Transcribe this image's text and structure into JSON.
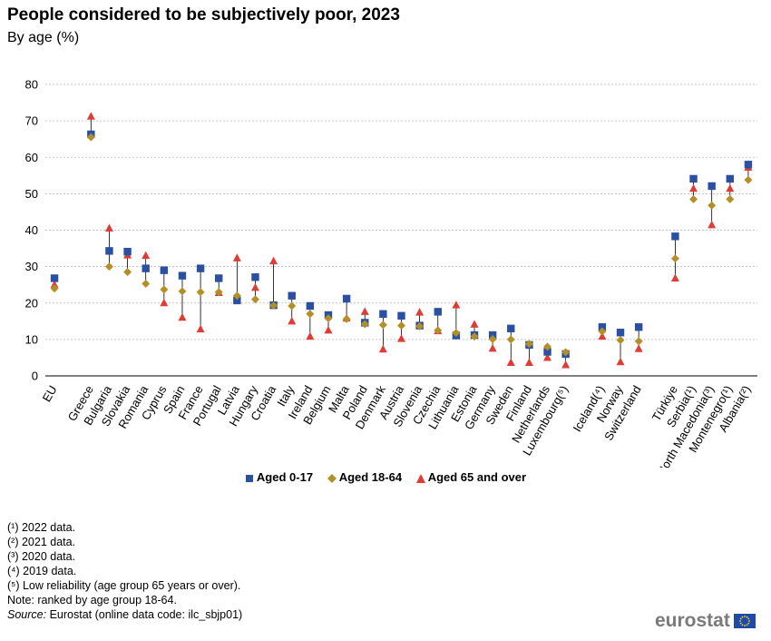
{
  "header": {
    "title": "People considered to be subjectively poor, 2023",
    "subtitle": "By age (%)"
  },
  "chart_data": {
    "type": "scatter",
    "title": "People considered to be subjectively poor, 2023",
    "subtitle": "By age (%)",
    "ylim": [
      0,
      80
    ],
    "yticks": [
      0,
      10,
      20,
      30,
      40,
      50,
      60,
      70,
      80
    ],
    "grid": true,
    "legend_position": "bottom",
    "categories": [
      "EU",
      "",
      "Greece",
      "Bulgaria",
      "Slovakia",
      "Romania",
      "Cyprus",
      "Spain",
      "France",
      "Portugal",
      "Latvia",
      "Hungary",
      "Croatia",
      "Italy",
      "Ireland",
      "Belgium",
      "Malta",
      "Poland",
      "Denmark",
      "Austria",
      "Slovenia",
      "Czechia",
      "Lithuania",
      "Estonia",
      "Germany",
      "Sweden",
      "Finland",
      "Netherlands",
      "Luxembourg(⁵)",
      "",
      "Iceland(⁴)",
      "Norway",
      "Switzerland",
      "",
      "Türkiye",
      "Serbia(¹)",
      "North Macedonia(³)",
      "Montenegro(¹)",
      "Albania(²)"
    ],
    "series": [
      {
        "name": "Aged 0-17",
        "color": "#2a4fa3",
        "marker": "square",
        "values": [
          26.8,
          null,
          66.3,
          34.3,
          34.1,
          29.5,
          29.0,
          27.5,
          29.5,
          26.8,
          20.7,
          27.1,
          19.4,
          22.0,
          19.2,
          16.7,
          21.2,
          14.6,
          17.0,
          16.5,
          13.8,
          17.6,
          11.1,
          11.2,
          11.2,
          13.0,
          8.5,
          6.6,
          6.0,
          null,
          13.4,
          11.9,
          13.4,
          null,
          38.3,
          54.1,
          52.1,
          54.1,
          58.0
        ]
      },
      {
        "name": "Aged 18-64",
        "color": "#b39027",
        "marker": "diamond",
        "values": [
          24.0,
          null,
          65.5,
          30.0,
          28.5,
          25.3,
          23.7,
          23.2,
          23.0,
          23.0,
          22.0,
          21.0,
          19.3,
          19.2,
          17.0,
          15.8,
          15.6,
          14.2,
          14.0,
          13.8,
          13.6,
          12.5,
          11.8,
          10.8,
          10.1,
          10.0,
          8.8,
          8.0,
          6.5,
          null,
          12.2,
          9.8,
          9.5,
          null,
          32.2,
          48.5,
          46.8,
          48.5,
          53.8
        ]
      },
      {
        "name": "Aged 65 and over",
        "color": "#e03c36",
        "marker": "triangle",
        "values": [
          25.0,
          null,
          71.2,
          40.5,
          33.1,
          33.0,
          20.0,
          16.0,
          12.8,
          22.8,
          32.3,
          24.2,
          31.5,
          15.0,
          10.8,
          12.5,
          15.8,
          17.6,
          7.3,
          10.2,
          17.4,
          12.3,
          19.4,
          14.1,
          7.5,
          3.6,
          3.6,
          5.0,
          3.0,
          null,
          10.8,
          3.8,
          7.4,
          null,
          26.8,
          51.4,
          41.4,
          51.4,
          57.2
        ]
      }
    ]
  },
  "legend": {
    "items": [
      {
        "label": "Aged 0-17"
      },
      {
        "label": "Aged 18-64"
      },
      {
        "label": "Aged 65 and over"
      }
    ]
  },
  "notes": {
    "n1": "(¹) 2022 data.",
    "n2": "(²) 2021 data.",
    "n3": "(³) 2020 data.",
    "n4": "(⁴) 2019 data.",
    "n5": "(⁵) Low reliability (age group 65 years or over).",
    "note": "Note: ranked by age group 18-64.",
    "source_label": "Source:",
    "source_text": " Eurostat (online data code: ilc_sbjp01)"
  },
  "logo": {
    "text": "eurostat"
  }
}
